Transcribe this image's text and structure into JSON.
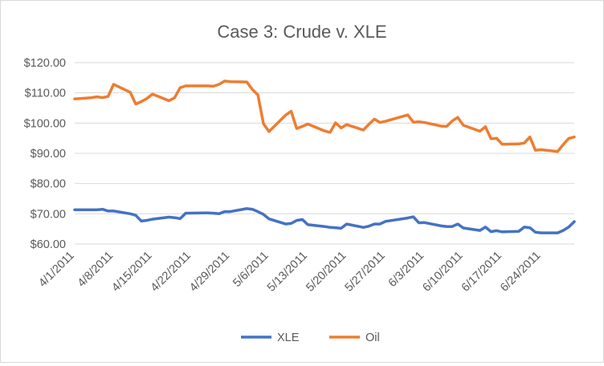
{
  "chart_data": {
    "type": "line",
    "title": "Case 3: Crude v. XLE",
    "xlabel": "",
    "ylabel": "",
    "ylim": [
      60,
      120
    ],
    "y_ticks": [
      "$60.00",
      "$70.00",
      "$80.00",
      "$90.00",
      "$100.00",
      "$110.00",
      "$120.00"
    ],
    "x_tick_labels": [
      "4/1/2011",
      "4/8/2011",
      "4/15/2011",
      "4/22/2011",
      "4/29/2011",
      "5/6/2011",
      "5/13/2011",
      "5/20/2011",
      "5/27/2011",
      "6/3/2011",
      "6/10/2011",
      "6/17/2011",
      "6/24/2011"
    ],
    "grid": true,
    "legend_position": "bottom",
    "x": [
      "2011-04-01",
      "2011-04-04",
      "2011-04-05",
      "2011-04-06",
      "2011-04-07",
      "2011-04-08",
      "2011-04-11",
      "2011-04-12",
      "2011-04-13",
      "2011-04-14",
      "2011-04-15",
      "2011-04-18",
      "2011-04-19",
      "2011-04-20",
      "2011-04-21",
      "2011-04-25",
      "2011-04-26",
      "2011-04-27",
      "2011-04-28",
      "2011-04-29",
      "2011-05-02",
      "2011-05-03",
      "2011-05-04",
      "2011-05-05",
      "2011-05-06",
      "2011-05-09",
      "2011-05-10",
      "2011-05-11",
      "2011-05-12",
      "2011-05-13",
      "2011-05-16",
      "2011-05-17",
      "2011-05-18",
      "2011-05-19",
      "2011-05-20",
      "2011-05-23",
      "2011-05-24",
      "2011-05-25",
      "2011-05-26",
      "2011-05-27",
      "2011-05-31",
      "2011-06-01",
      "2011-06-02",
      "2011-06-03",
      "2011-06-06",
      "2011-06-07",
      "2011-06-08",
      "2011-06-09",
      "2011-06-10",
      "2011-06-13",
      "2011-06-14",
      "2011-06-15",
      "2011-06-16",
      "2011-06-17",
      "2011-06-20",
      "2011-06-21",
      "2011-06-22",
      "2011-06-23",
      "2011-06-24",
      "2011-06-27",
      "2011-06-28",
      "2011-06-29",
      "2011-06-30"
    ],
    "series": [
      {
        "name": "XLE",
        "color": "#4472c4",
        "values": [
          71.3,
          71.3,
          71.3,
          71.5,
          70.9,
          70.9,
          70.0,
          69.5,
          67.6,
          67.8,
          68.2,
          68.9,
          68.7,
          68.4,
          70.2,
          70.3,
          70.2,
          70.0,
          70.7,
          70.7,
          71.7,
          71.5,
          70.7,
          69.8,
          68.3,
          66.6,
          66.8,
          67.8,
          68.1,
          66.4,
          65.8,
          65.5,
          65.4,
          65.2,
          66.6,
          65.5,
          65.9,
          66.6,
          66.6,
          67.5,
          68.6,
          69.0,
          67.0,
          67.1,
          66.0,
          65.8,
          65.8,
          66.6,
          65.3,
          64.5,
          65.6,
          64.1,
          64.4,
          64.0,
          64.2,
          65.6,
          65.4,
          63.9,
          63.7,
          63.7,
          64.5,
          65.6,
          67.4
        ]
      },
      {
        "name": "Oil",
        "color": "#ed7d31",
        "values": [
          108.0,
          108.4,
          108.7,
          108.4,
          108.8,
          112.8,
          110.2,
          106.3,
          107.1,
          108.1,
          109.6,
          107.4,
          108.4,
          111.7,
          112.3,
          112.3,
          112.2,
          112.8,
          113.9,
          113.7,
          113.6,
          111.1,
          109.3,
          99.8,
          97.2,
          102.6,
          103.9,
          98.2,
          98.9,
          99.7,
          97.4,
          96.9,
          100.1,
          98.4,
          99.5,
          97.7,
          99.6,
          101.3,
          100.2,
          100.6,
          102.7,
          100.3,
          100.4,
          100.2,
          99.0,
          98.9,
          100.7,
          101.9,
          99.3,
          97.3,
          98.8,
          94.8,
          95.0,
          93.0,
          93.1,
          93.4,
          95.4,
          91.0,
          91.2,
          90.6,
          92.9,
          94.9,
          95.4
        ]
      }
    ]
  }
}
